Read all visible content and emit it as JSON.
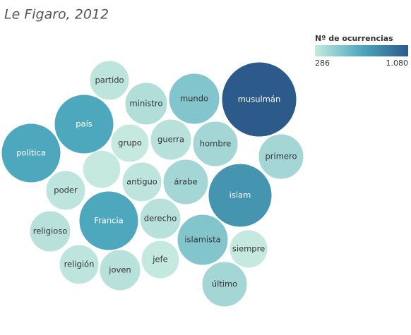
{
  "chart_data": {
    "type": "bubble",
    "title": "Le Figaro, 2012",
    "categories": [
      "musulmán",
      "islam",
      "política",
      "Francia",
      "país",
      "islamista",
      "mundo",
      "árabe",
      "hombre",
      "último",
      "primero",
      "ministro",
      "guerra",
      "derecho",
      "religioso",
      "antiguo",
      "joven",
      "religión",
      "partido",
      "poder",
      "siempre",
      "grupo",
      "jefe",
      null
    ],
    "values": [
      1080,
      784,
      685,
      685,
      685,
      507,
      507,
      403,
      403,
      403,
      403,
      356,
      333,
      333,
      333,
      311,
      333,
      311,
      311,
      311,
      290,
      290,
      290,
      286
    ],
    "legend": {
      "title": "Nº de ocurrencias",
      "min": 286,
      "max": {
        "value": 1080,
        "label": "1.080"
      },
      "colors": [
        "#c6e9df",
        "#4ea8bd",
        "#2c5a8b"
      ]
    }
  }
}
